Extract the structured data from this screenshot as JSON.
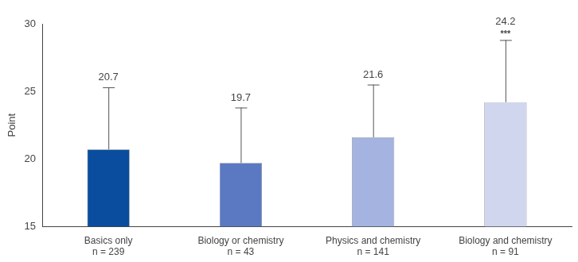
{
  "chart_data": {
    "type": "bar",
    "y_label": "Point",
    "categories": [
      [
        "Basics only",
        "n = 239"
      ],
      [
        "Biology or chemistry",
        "n = 43"
      ],
      [
        "Physics and chemistry",
        "n = 141"
      ],
      [
        "Biology and chemistry",
        "n = 91"
      ]
    ],
    "values": [
      20.7,
      19.7,
      21.6,
      24.2
    ],
    "errors": [
      4.6,
      4.1,
      3.9,
      4.6
    ],
    "significance": [
      null,
      null,
      null,
      "***"
    ],
    "colors": [
      "#0a4d9e",
      "#5b79c2",
      "#a4b3df",
      "#d1d6ef"
    ],
    "ylim": [
      15,
      30
    ],
    "yticks": [
      15,
      20,
      25,
      30
    ],
    "grid": false,
    "data_labels": true
  }
}
